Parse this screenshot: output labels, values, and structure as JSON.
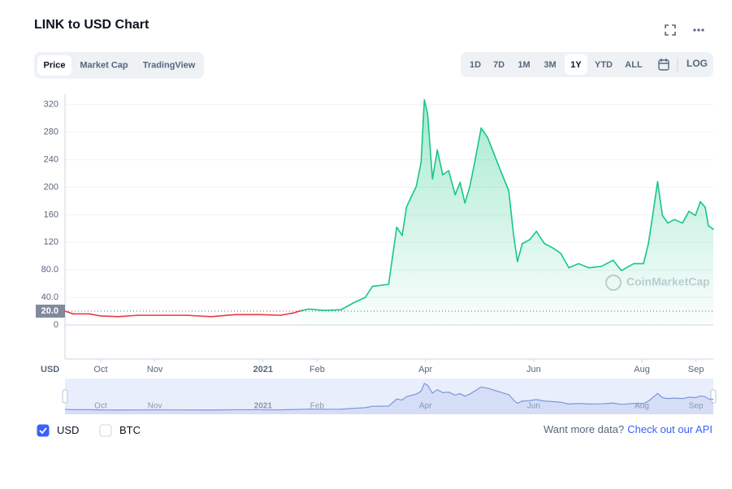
{
  "chart_data": {
    "type": "line",
    "title": "LINK to USD Chart",
    "tabs": [
      {
        "label": "Price",
        "active": true
      },
      {
        "label": "Market Cap",
        "active": false
      },
      {
        "label": "TradingView",
        "active": false
      }
    ],
    "ranges": [
      {
        "label": "1D",
        "active": false
      },
      {
        "label": "7D",
        "active": false
      },
      {
        "label": "1M",
        "active": false
      },
      {
        "label": "3M",
        "active": false
      },
      {
        "label": "1Y",
        "active": true
      },
      {
        "label": "YTD",
        "active": false
      },
      {
        "label": "ALL",
        "active": false
      }
    ],
    "log_button": "LOG",
    "log": false,
    "y_label": "USD",
    "watermark": "CoinMarketCap",
    "color_up": "#16c784",
    "color_down": "#ea3943",
    "navigator_color": "#7b98dc",
    "x": [
      0.34,
      0.49,
      0.79,
      1.0,
      1.32,
      1.69,
      2.14,
      2.59,
      3.04,
      3.49,
      3.94,
      4.32,
      4.54,
      4.72,
      4.84,
      5.14,
      5.44,
      5.67,
      5.89,
      6.02,
      6.32,
      6.47,
      6.57,
      6.65,
      6.72,
      6.83,
      6.92,
      6.98,
      7.04,
      7.13,
      7.22,
      7.32,
      7.43,
      7.55,
      7.64,
      7.73,
      7.82,
      7.91,
      8.03,
      8.15,
      8.27,
      8.42,
      8.54,
      8.63,
      8.7,
      8.79,
      8.93,
      9.05,
      9.2,
      9.35,
      9.5,
      9.65,
      9.83,
      10.02,
      10.25,
      10.47,
      10.62,
      10.85,
      11.03,
      11.12,
      11.2,
      11.29,
      11.38,
      11.48,
      11.6,
      11.75,
      11.87,
      11.99,
      12.08,
      12.17,
      12.23,
      12.32
    ],
    "values": [
      20,
      16,
      16,
      13,
      12,
      14,
      14,
      14,
      12,
      15,
      15,
      14,
      17,
      21,
      23,
      21,
      22,
      32,
      40,
      56,
      59,
      142,
      130,
      171,
      183,
      201,
      236,
      327,
      307,
      212,
      254,
      218,
      224,
      189,
      207,
      177,
      201,
      236,
      286,
      272,
      248,
      218,
      195,
      130,
      92,
      118,
      124,
      136,
      118,
      112,
      104,
      83,
      89,
      83,
      85,
      94,
      79,
      89,
      89,
      118,
      159,
      208,
      159,
      148,
      153,
      148,
      165,
      159,
      179,
      171,
      144,
      139
    ],
    "xlim": [
      0.34,
      12.32
    ],
    "ylim": [
      0,
      328
    ],
    "xticks": [
      {
        "value": 1,
        "label": "Oct"
      },
      {
        "value": 2,
        "label": "Nov"
      },
      {
        "value": 4,
        "label": "2021"
      },
      {
        "value": 5,
        "label": "Feb"
      },
      {
        "value": 7,
        "label": "Apr"
      },
      {
        "value": 9,
        "label": "Jun"
      },
      {
        "value": 11,
        "label": "Aug"
      },
      {
        "value": 12,
        "label": "Sep"
      }
    ],
    "yticks": [
      0,
      {
        "value": 40,
        "label": "40.0"
      },
      {
        "value": 80,
        "label": "80.0"
      },
      120,
      160,
      200,
      240,
      280,
      320
    ],
    "price_marker": {
      "value": 20,
      "label": "20.0"
    },
    "grid": true,
    "currency_toggles": [
      {
        "label": "USD",
        "checked": true
      },
      {
        "label": "BTC",
        "checked": false
      }
    ],
    "footer_text": "Want more data?",
    "footer_link": "Check out our API"
  }
}
